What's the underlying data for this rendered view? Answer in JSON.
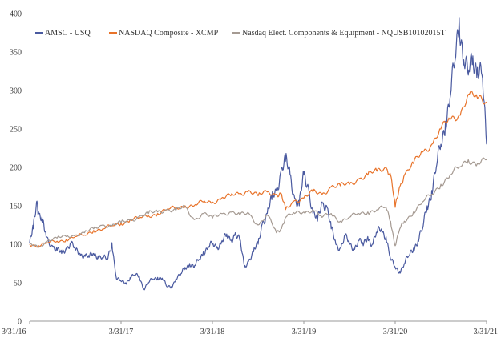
{
  "chart_data": {
    "type": "line",
    "title": "",
    "xlabel": "",
    "ylabel": "",
    "ylim": [
      0,
      400
    ],
    "y_ticks": [
      0,
      50,
      100,
      150,
      200,
      250,
      300,
      350,
      400
    ],
    "x_range": [
      0,
      5
    ],
    "x_ticks": [
      {
        "x": 0,
        "label": "3/31/16"
      },
      {
        "x": 1,
        "label": "3/31/17"
      },
      {
        "x": 2,
        "label": "3/31/18"
      },
      {
        "x": 3,
        "label": "3/31/19"
      },
      {
        "x": 4,
        "label": "3/31/20"
      },
      {
        "x": 5,
        "label": "3/31/21"
      }
    ],
    "grid": false,
    "legend_position": "top",
    "series": [
      {
        "name": "AMSC - USQ",
        "color": "#4a5aa0",
        "x": [
          0,
          0.04,
          0.08,
          0.1,
          0.14,
          0.18,
          0.25,
          0.3,
          0.35,
          0.4,
          0.45,
          0.5,
          0.55,
          0.6,
          0.65,
          0.7,
          0.75,
          0.8,
          0.85,
          0.9,
          0.95,
          1.0,
          1.05,
          1.1,
          1.15,
          1.2,
          1.25,
          1.3,
          1.35,
          1.4,
          1.45,
          1.5,
          1.55,
          1.6,
          1.65,
          1.7,
          1.75,
          1.8,
          1.85,
          1.9,
          1.95,
          2.0,
          2.05,
          2.1,
          2.15,
          2.2,
          2.25,
          2.3,
          2.35,
          2.4,
          2.45,
          2.5,
          2.55,
          2.6,
          2.65,
          2.7,
          2.75,
          2.8,
          2.85,
          2.9,
          2.95,
          3.0,
          3.05,
          3.1,
          3.15,
          3.2,
          3.25,
          3.3,
          3.35,
          3.4,
          3.45,
          3.5,
          3.55,
          3.6,
          3.65,
          3.7,
          3.75,
          3.8,
          3.85,
          3.9,
          3.95,
          4.0,
          4.05,
          4.1,
          4.15,
          4.2,
          4.25,
          4.3,
          4.35,
          4.4,
          4.45,
          4.5,
          4.55,
          4.6,
          4.65,
          4.7,
          4.75,
          4.8,
          4.85,
          4.9,
          4.95,
          5.0
        ],
        "values": [
          102,
          120,
          156,
          140,
          128,
          110,
          98,
          92,
          88,
          95,
          102,
          92,
          88,
          86,
          83,
          88,
          85,
          82,
          80,
          102,
          55,
          52,
          50,
          57,
          60,
          58,
          42,
          50,
          55,
          57,
          56,
          45,
          45,
          55,
          60,
          70,
          75,
          70,
          80,
          90,
          95,
          100,
          97,
          103,
          110,
          105,
          115,
          105,
          70,
          80,
          90,
          100,
          130,
          140,
          158,
          170,
          195,
          208,
          190,
          160,
          150,
          190,
          175,
          140,
          130,
          155,
          150,
          120,
          100,
          95,
          110,
          100,
          95,
          105,
          98,
          110,
          100,
          115,
          120,
          110,
          80,
          70,
          65,
          75,
          85,
          95,
          105,
          120,
          150,
          170,
          200,
          230,
          260,
          290,
          335,
          395,
          340,
          320,
          345,
          330,
          320,
          230
        ]
      },
      {
        "name": "NASDAQ Composite - XCMP",
        "color": "#e8732a",
        "x": [
          0,
          0.1,
          0.2,
          0.3,
          0.4,
          0.5,
          0.6,
          0.7,
          0.8,
          0.9,
          1.0,
          1.1,
          1.2,
          1.3,
          1.4,
          1.5,
          1.6,
          1.7,
          1.8,
          1.9,
          2.0,
          2.1,
          2.2,
          2.3,
          2.4,
          2.5,
          2.6,
          2.7,
          2.75,
          2.8,
          2.9,
          3.0,
          3.1,
          3.2,
          3.3,
          3.4,
          3.5,
          3.6,
          3.7,
          3.8,
          3.9,
          3.95,
          4.0,
          4.05,
          4.1,
          4.2,
          4.3,
          4.4,
          4.5,
          4.6,
          4.7,
          4.8,
          4.9,
          5.0
        ],
        "values": [
          100,
          98,
          102,
          104,
          106,
          110,
          112,
          118,
          120,
          124,
          127,
          132,
          134,
          137,
          140,
          145,
          147,
          150,
          150,
          155,
          155,
          160,
          163,
          166,
          170,
          163,
          168,
          165,
          165,
          145,
          157,
          160,
          168,
          165,
          175,
          176,
          178,
          185,
          190,
          195,
          200,
          190,
          148,
          175,
          190,
          205,
          220,
          230,
          250,
          262,
          268,
          295,
          290,
          285
        ]
      },
      {
        "name": "Nasdaq Elect. Components & Equipment - NQUSB10102015T",
        "color": "#a59a92",
        "x": [
          0,
          0.1,
          0.2,
          0.3,
          0.4,
          0.5,
          0.6,
          0.7,
          0.8,
          0.9,
          1.0,
          1.1,
          1.2,
          1.3,
          1.4,
          1.5,
          1.6,
          1.7,
          1.8,
          1.9,
          2.0,
          2.1,
          2.2,
          2.3,
          2.4,
          2.5,
          2.6,
          2.7,
          2.75,
          2.8,
          2.9,
          3.0,
          3.1,
          3.2,
          3.3,
          3.4,
          3.5,
          3.6,
          3.7,
          3.8,
          3.9,
          3.95,
          4.0,
          4.05,
          4.1,
          4.2,
          4.3,
          4.4,
          4.5,
          4.6,
          4.7,
          4.8,
          4.9,
          5.0
        ],
        "values": [
          100,
          96,
          105,
          108,
          110,
          112,
          115,
          120,
          125,
          124,
          128,
          131,
          136,
          140,
          142,
          145,
          144,
          148,
          132,
          140,
          134,
          140,
          142,
          138,
          140,
          125,
          138,
          115,
          120,
          135,
          140,
          142,
          145,
          135,
          140,
          130,
          135,
          140,
          142,
          145,
          148,
          130,
          98,
          120,
          130,
          142,
          155,
          165,
          178,
          190,
          200,
          210,
          205,
          210
        ]
      }
    ]
  }
}
